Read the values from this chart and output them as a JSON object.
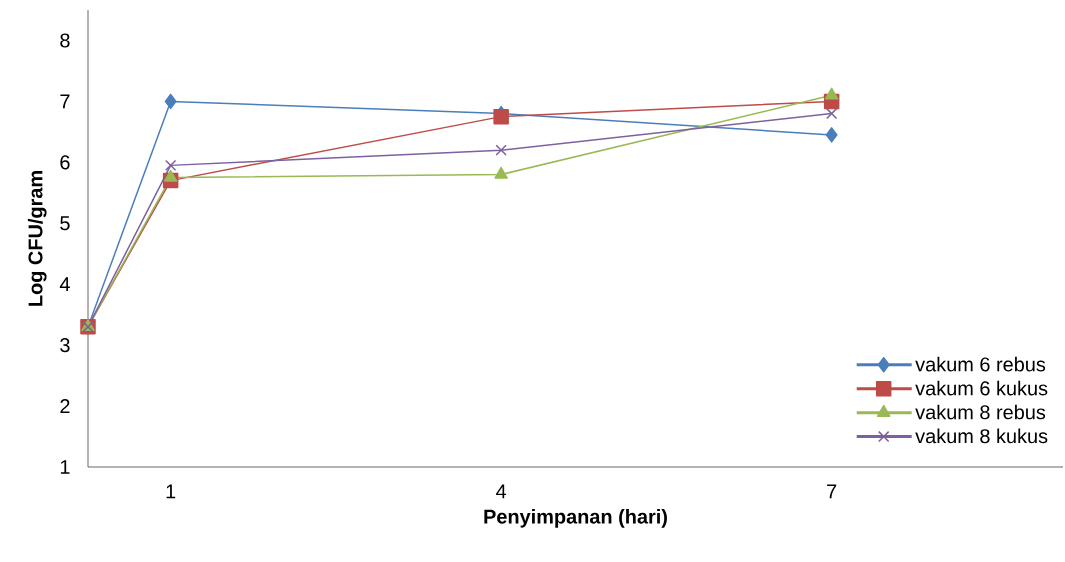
{
  "chart_data": {
    "type": "line",
    "xlabel": "Penyimpanan (hari)",
    "ylabel": "Log CFU/gram",
    "x": [
      0.25,
      1,
      4,
      7
    ],
    "xlim": [
      0.25,
      9.1
    ],
    "xticks": [
      1,
      4,
      7
    ],
    "ylim": [
      1,
      8.5
    ],
    "yticks": [
      1,
      2,
      3,
      4,
      5,
      6,
      7,
      8
    ],
    "grid": false,
    "legend": "bottom right",
    "series": [
      {
        "name": "vakum 6 rebus",
        "color": "#4a7ebb",
        "marker": "diamond",
        "values": [
          3.3,
          7.0,
          6.8,
          6.45
        ]
      },
      {
        "name": "vakum 6 kukus",
        "color": "#be4b48",
        "marker": "square",
        "values": [
          3.3,
          5.7,
          6.75,
          7.0
        ]
      },
      {
        "name": "vakum 8 rebus",
        "color": "#98b954",
        "marker": "triangle",
        "values": [
          3.3,
          5.75,
          5.8,
          7.1
        ]
      },
      {
        "name": "vakum 8 kukus",
        "color": "#7d60a0",
        "marker": "cross",
        "values": [
          3.3,
          5.95,
          6.2,
          6.8
        ]
      }
    ]
  }
}
